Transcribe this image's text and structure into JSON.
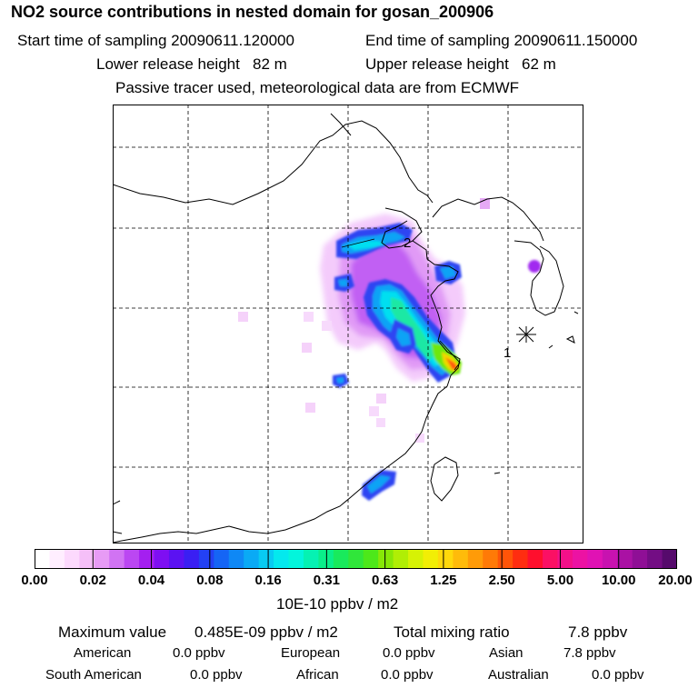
{
  "title": "NO2 source contributions in nested domain for gosan_200906",
  "header": {
    "start_label": "Start time of sampling 20090611.120000",
    "end_label": "End time of sampling 20090611.150000",
    "lower_label": "Lower release height   82 m",
    "upper_label": "Upper release height   62 m",
    "note": "Passive tracer used, meteorological data are from ECMWF"
  },
  "map": {
    "station_label_1": "1",
    "station_label_2": "2"
  },
  "colorbar": {
    "units": "10E-10 ppbv / m2",
    "tick_labels": [
      "0.00",
      "0.02",
      "0.04",
      "0.08",
      "0.16",
      "0.31",
      "0.63",
      "1.25",
      "2.50",
      "5.00",
      "10.00",
      "20.00"
    ],
    "colors": [
      "#ffffff",
      "#ffeeff",
      "#fcd9fd",
      "#f5bff8",
      "#e79bf5",
      "#d173f3",
      "#bb47f2",
      "#a41ff0",
      "#7e0ff2",
      "#5b12f2",
      "#3a1ff3",
      "#2341f4",
      "#1565f5",
      "#0f88f5",
      "#0aaaf5",
      "#08cbf2",
      "#04e9ee",
      "#03f5dc",
      "#05f2b3",
      "#0aee8a",
      "#19ea5c",
      "#30e63a",
      "#4de81a",
      "#87e807",
      "#b0ee05",
      "#d6f205",
      "#f2ee05",
      "#ffd80b",
      "#ffbb0a",
      "#ff9b08",
      "#ff7a07",
      "#ff5408",
      "#ff2d10",
      "#ff0f2d",
      "#fb1064",
      "#f31089",
      "#ec12a3",
      "#e012b4",
      "#c812b0",
      "#aa11a4",
      "#8f0f96",
      "#730d84",
      "#560a6c"
    ]
  },
  "summary": {
    "max_label": "Maximum value",
    "max_value": "0.485E-09 ppbv / m2",
    "total_label": "Total mixing ratio",
    "total_value": "7.8 ppbv",
    "regions": [
      {
        "name": "American",
        "value": "0.0 ppbv"
      },
      {
        "name": "European",
        "value": "0.0 ppbv"
      },
      {
        "name": "Asian",
        "value": "7.8 ppbv"
      },
      {
        "name": "South American",
        "value": "0.0 ppbv"
      },
      {
        "name": "African",
        "value": "0.0 ppbv"
      },
      {
        "name": "Australian",
        "value": "0.0 ppbv"
      }
    ]
  }
}
